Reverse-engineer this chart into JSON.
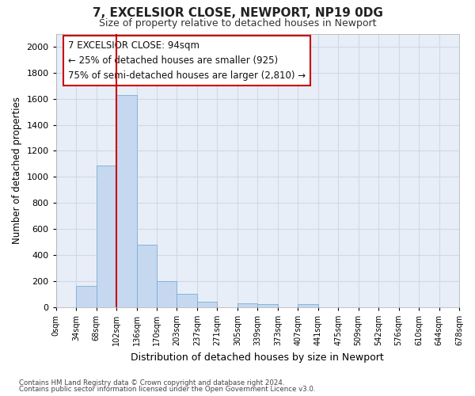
{
  "title_line1": "7, EXCELSIOR CLOSE, NEWPORT, NP19 0DG",
  "title_line2": "Size of property relative to detached houses in Newport",
  "xlabel": "Distribution of detached houses by size in Newport",
  "ylabel": "Number of detached properties",
  "footer_line1": "Contains HM Land Registry data © Crown copyright and database right 2024.",
  "footer_line2": "Contains public sector information licensed under the Open Government Licence v3.0.",
  "annotation_line1": "7 EXCELSIOR CLOSE: 94sqm",
  "annotation_line2": "← 25% of detached houses are smaller (925)",
  "annotation_line3": "75% of semi-detached houses are larger (2,810) →",
  "bar_color": "#c5d8f0",
  "bar_edge_color": "#7aadd4",
  "vline_color": "#cc0000",
  "vline_x": 3.0,
  "bin_labels": [
    "0sqm",
    "34sqm",
    "68sqm",
    "102sqm",
    "136sqm",
    "170sqm",
    "203sqm",
    "237sqm",
    "271sqm",
    "305sqm",
    "339sqm",
    "373sqm",
    "407sqm",
    "441sqm",
    "475sqm",
    "509sqm",
    "542sqm",
    "576sqm",
    "610sqm",
    "644sqm",
    "678sqm"
  ],
  "bar_heights": [
    0,
    165,
    1085,
    1630,
    480,
    200,
    100,
    40,
    0,
    30,
    20,
    0,
    20,
    0,
    0,
    0,
    0,
    0,
    0,
    0
  ],
  "ylim": [
    0,
    2100
  ],
  "yticks": [
    0,
    200,
    400,
    600,
    800,
    1000,
    1200,
    1400,
    1600,
    1800,
    2000
  ],
  "grid_color": "#d0d8e8",
  "bg_color": "#ffffff",
  "plot_bg_color": "#e8eef8"
}
